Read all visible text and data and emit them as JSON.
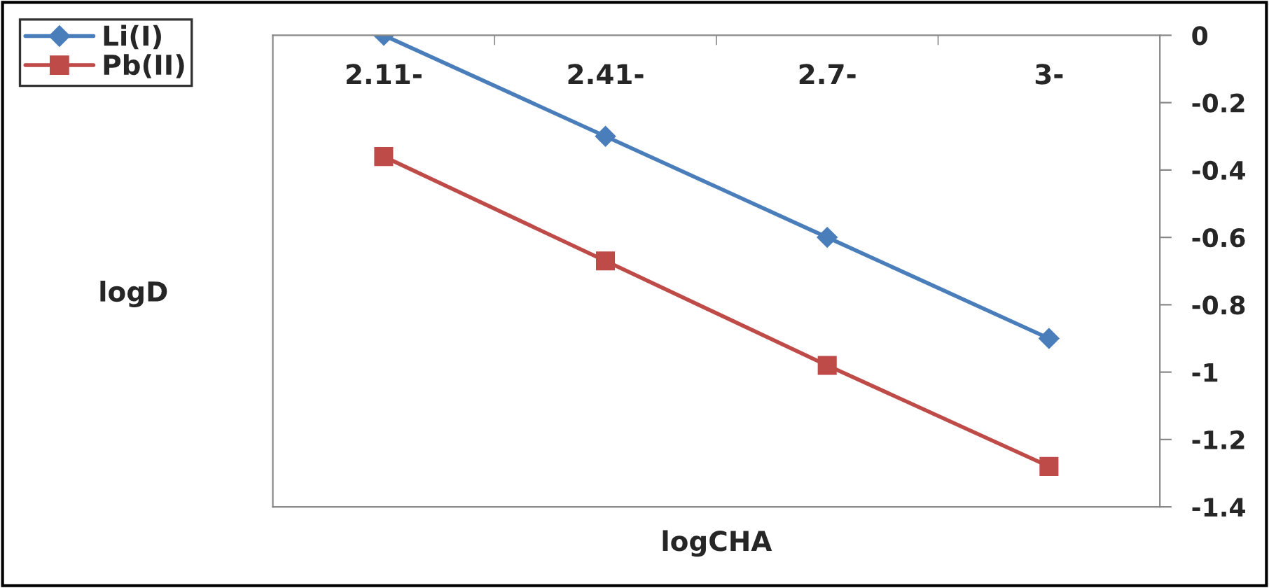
{
  "chart_data": {
    "type": "line",
    "xlabel": "logCHA",
    "ylabel": "logD",
    "categories": [
      "2.11-",
      "2.41-",
      "2.7-",
      "3-"
    ],
    "series": [
      {
        "name": "Li(I)",
        "color": "#4a7ebb",
        "marker": "diamond",
        "values": [
          0,
          -0.3,
          -0.6,
          -0.9
        ]
      },
      {
        "name": "Pb(II)",
        "color": "#be4b48",
        "marker": "square",
        "values": [
          -0.36,
          -0.67,
          -0.98,
          -1.28
        ]
      }
    ],
    "ylim": [
      -1.4,
      0
    ],
    "yticks": [
      0,
      -0.2,
      -0.4,
      -0.6,
      -0.8,
      -1,
      -1.2,
      -1.4
    ],
    "grid": false,
    "legend": "top left",
    "line_style": "solid"
  }
}
